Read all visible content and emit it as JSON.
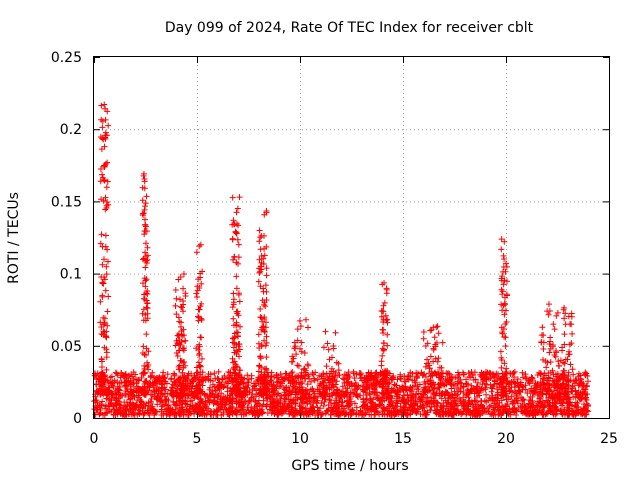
{
  "chart_data": {
    "type": "scatter",
    "title": "Day 099 of 2024, Rate Of TEC Index for receiver cblt",
    "xlabel": "GPS time / hours",
    "ylabel": "ROTI / TECUs",
    "xlim": [
      0,
      25
    ],
    "ylim": [
      0,
      0.25
    ],
    "x_ticks": [
      0,
      5,
      10,
      15,
      20,
      25
    ],
    "x_tick_labels": [
      "0",
      "5",
      "10",
      "15",
      "20",
      "25"
    ],
    "y_ticks": [
      0,
      0.05,
      0.1,
      0.15,
      0.2,
      0.25
    ],
    "y_tick_labels": [
      "0",
      "0.05",
      "0.1",
      "0.15",
      "0.2",
      "0.25"
    ],
    "grid": true,
    "marker": "plus",
    "color": "#ff0000",
    "baseline": {
      "x_range": [
        0,
        24
      ],
      "y_min": 0.002,
      "y_max": 0.032,
      "points": 3000
    },
    "features": [
      {
        "x": 0.5,
        "width": 0.4,
        "peak": 0.22,
        "points": 120
      },
      {
        "x": 2.5,
        "width": 0.3,
        "peak": 0.17,
        "points": 90
      },
      {
        "x": 4.2,
        "width": 0.5,
        "peak": 0.1,
        "points": 80
      },
      {
        "x": 5.1,
        "width": 0.3,
        "peak": 0.12,
        "points": 50
      },
      {
        "x": 6.9,
        "width": 0.4,
        "peak": 0.165,
        "points": 100
      },
      {
        "x": 8.2,
        "width": 0.4,
        "peak": 0.145,
        "points": 100
      },
      {
        "x": 10.0,
        "width": 0.8,
        "peak": 0.07,
        "points": 50
      },
      {
        "x": 11.5,
        "width": 0.8,
        "peak": 0.06,
        "points": 40
      },
      {
        "x": 14.1,
        "width": 0.3,
        "peak": 0.095,
        "points": 60
      },
      {
        "x": 16.5,
        "width": 1.0,
        "peak": 0.065,
        "points": 60
      },
      {
        "x": 19.9,
        "width": 0.3,
        "peak": 0.125,
        "points": 70
      },
      {
        "x": 22.3,
        "width": 1.2,
        "peak": 0.08,
        "points": 80
      },
      {
        "x": 23.0,
        "width": 0.5,
        "peak": 0.075,
        "points": 40
      }
    ]
  }
}
